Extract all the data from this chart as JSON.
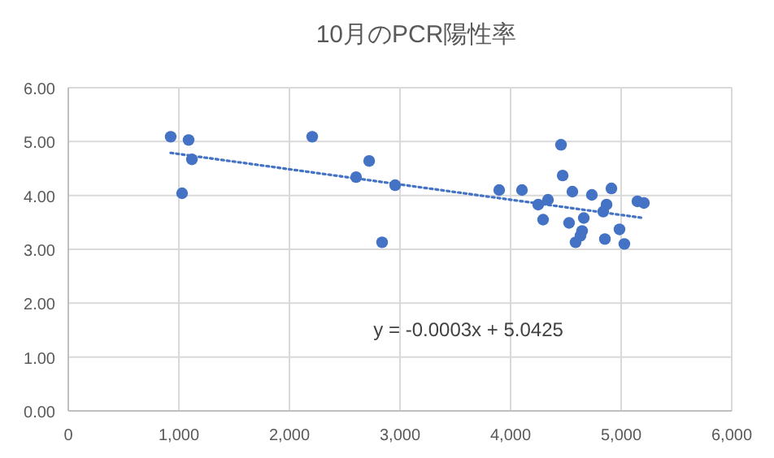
{
  "chart_data": {
    "type": "scatter",
    "title": "10月のPCR陽性率",
    "series": [
      {
        "type": "scatter",
        "color": "#4472c4",
        "marker": "circle",
        "x": [
          926,
          1088,
          1118,
          1029,
          2206,
          2603,
          2721,
          2838,
          2956,
          3897,
          4103,
          4250,
          4338,
          4294,
          4456,
          4471,
          4559,
          4529,
          4662,
          4735,
          4647,
          4632,
          4588,
          4912,
          4868,
          4838,
          4853,
          4985,
          5029,
          5147,
          5206
        ],
        "values": [
          5.09,
          5.03,
          4.67,
          4.04,
          5.09,
          4.34,
          4.64,
          3.13,
          4.19,
          4.1,
          4.1,
          3.83,
          3.92,
          3.55,
          4.94,
          4.37,
          4.07,
          3.49,
          3.58,
          4.01,
          3.34,
          3.25,
          3.13,
          4.13,
          3.83,
          3.7,
          3.19,
          3.37,
          3.1,
          3.89,
          3.86
        ]
      },
      {
        "type": "line",
        "color": "#4472c4",
        "line_style": "dotted",
        "marker": "none",
        "x": [
          926,
          5206
        ],
        "values": [
          4.79,
          3.58
        ]
      }
    ],
    "xlim": [
      0,
      6000
    ],
    "xticks": [
      0,
      {
        "value": 1000,
        "label": "1,000"
      },
      {
        "value": 2000,
        "label": "2,000"
      },
      {
        "value": 3000,
        "label": "3,000"
      },
      {
        "value": 4000,
        "label": "4,000"
      },
      {
        "value": 5000,
        "label": "5,000"
      },
      {
        "value": 6000,
        "label": "6,000"
      }
    ],
    "ylim": [
      0,
      6
    ],
    "yticks": [
      {
        "value": 0,
        "label": "0.00"
      },
      {
        "value": 1,
        "label": "1.00"
      },
      {
        "value": 2,
        "label": "2.00"
      },
      {
        "value": 3,
        "label": "3.00"
      },
      {
        "value": 4,
        "label": "4.00"
      },
      {
        "value": 5,
        "label": "5.00"
      },
      {
        "value": 6,
        "label": "6.00"
      }
    ],
    "grid": true,
    "annotations": [
      "y = -0.0003x + 5.0425"
    ]
  }
}
